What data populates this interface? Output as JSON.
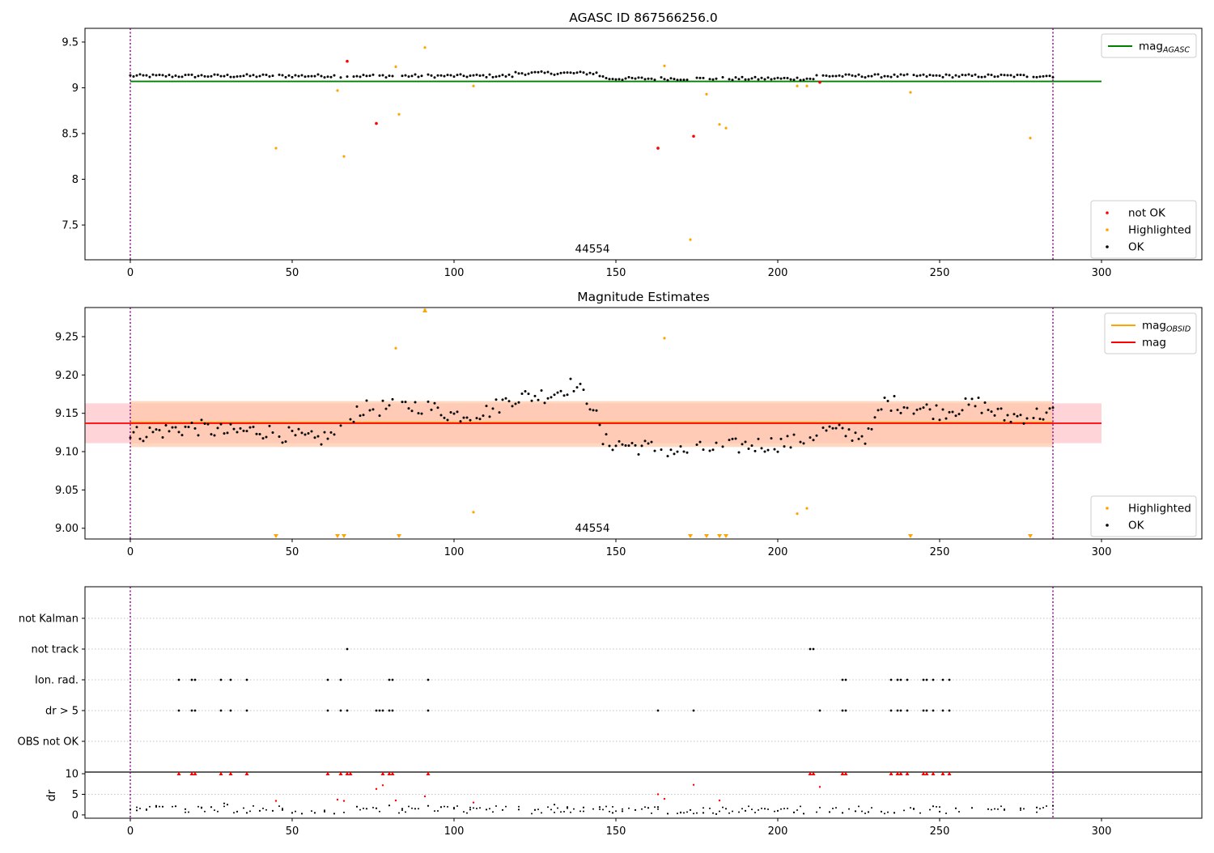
{
  "colors": {
    "ok": "#000000",
    "highlighted": "#ffa500",
    "not_ok": "#ff0000",
    "agasc_line": "#008000",
    "obsid_line": "#ffa500",
    "mag_line": "#ff0000",
    "band_pink": "#ffb0b8",
    "band_orange": "#ffc8a8",
    "vline": "#800080"
  },
  "chart_data": [
    {
      "type": "scatter",
      "title": "AGASC ID 867566256.0",
      "xlim": [
        -14,
        331
      ],
      "ylim": [
        7.12,
        9.65
      ],
      "xticks": [
        0,
        50,
        100,
        150,
        200,
        250,
        300
      ],
      "yticks": [
        7.5,
        8.0,
        8.5,
        9.0,
        9.5
      ],
      "annotation": "44554",
      "vlines": [
        0,
        285
      ],
      "hline": {
        "name": "mag",
        "subscript": "AGASC",
        "y": 9.07,
        "x": [
          0,
          300
        ]
      },
      "legend_top": [
        {
          "label": "mag",
          "sub": "AGASC",
          "kind": "line",
          "color": "#008000"
        }
      ],
      "legend_bottom": [
        {
          "label": "not OK",
          "color": "#ff0000"
        },
        {
          "label": "Highlighted",
          "color": "#ffa500"
        },
        {
          "label": "OK",
          "color": "#000000"
        }
      ],
      "series": [
        {
          "name": "not OK",
          "points": [
            [
              67,
              9.29
            ],
            [
              76,
              8.61
            ],
            [
              163,
              8.34
            ],
            [
              174,
              8.47
            ],
            [
              213,
              9.06
            ]
          ]
        },
        {
          "name": "Highlighted",
          "points": [
            [
              45,
              8.34
            ],
            [
              64,
              8.97
            ],
            [
              66,
              8.25
            ],
            [
              82,
              9.23
            ],
            [
              83,
              8.71
            ],
            [
              91,
              9.44
            ],
            [
              106,
              9.02
            ],
            [
              165,
              9.24
            ],
            [
              173,
              7.34
            ],
            [
              178,
              8.93
            ],
            [
              182,
              8.6
            ],
            [
              184,
              8.56
            ],
            [
              206,
              9.02
            ],
            [
              209,
              9.02
            ],
            [
              241,
              8.95
            ],
            [
              278,
              8.45
            ]
          ]
        },
        {
          "name": "OK",
          "base": 9.13,
          "x_range": [
            0,
            285
          ]
        }
      ]
    },
    {
      "type": "scatter",
      "title": "Magnitude Estimates",
      "xlim": [
        -14,
        331
      ],
      "ylim": [
        8.986,
        9.288
      ],
      "xticks": [
        0,
        50,
        100,
        150,
        200,
        250,
        300
      ],
      "yticks": [
        9.0,
        9.05,
        9.1,
        9.15,
        9.2,
        9.25
      ],
      "ytick_labels": [
        "9.00",
        "9.05",
        "9.10",
        "9.15",
        "9.20",
        "9.25"
      ],
      "annotation": "44554",
      "vlines": [
        0,
        285
      ],
      "lines": [
        {
          "name": "mag",
          "sub": "OBSID",
          "y": 9.138
        },
        {
          "name": "mag",
          "y": 9.137
        }
      ],
      "bands": [
        {
          "y": [
            9.111,
            9.163
          ],
          "x": [
            -14,
            300
          ]
        },
        {
          "y": [
            9.106,
            9.166
          ],
          "x": [
            0,
            285
          ]
        }
      ],
      "legend_top": [
        {
          "label": "mag",
          "sub": "OBSID",
          "kind": "line",
          "color": "#ffa500"
        },
        {
          "label": "mag",
          "kind": "line",
          "color": "#ff0000"
        }
      ],
      "legend_bottom": [
        {
          "label": "Highlighted",
          "color": "#ffa500"
        },
        {
          "label": "OK",
          "color": "#000000"
        }
      ],
      "highlighted_points": [
        [
          82,
          9.235
        ],
        [
          91,
          9.285
        ],
        [
          106,
          9.021
        ],
        [
          165,
          9.248
        ],
        [
          206,
          9.019
        ],
        [
          209,
          9.026
        ]
      ],
      "offscale_markers_x": [
        45,
        64,
        66,
        83,
        173,
        178,
        182,
        184,
        241,
        278
      ],
      "ok_trend": [
        [
          0,
          9.122
        ],
        [
          20,
          9.132
        ],
        [
          30,
          9.125
        ],
        [
          40,
          9.128
        ],
        [
          57,
          9.115
        ],
        [
          65,
          9.125
        ],
        [
          70,
          9.155
        ],
        [
          90,
          9.16
        ],
        [
          100,
          9.148
        ],
        [
          110,
          9.152
        ],
        [
          118,
          9.17
        ],
        [
          130,
          9.175
        ],
        [
          137,
          9.188
        ],
        [
          143,
          9.16
        ],
        [
          146,
          9.113
        ],
        [
          160,
          9.105
        ],
        [
          170,
          9.1
        ],
        [
          190,
          9.108
        ],
        [
          205,
          9.112
        ],
        [
          215,
          9.128
        ],
        [
          228,
          9.12
        ],
        [
          233,
          9.165
        ],
        [
          250,
          9.152
        ],
        [
          262,
          9.162
        ],
        [
          270,
          9.145
        ],
        [
          285,
          9.15
        ]
      ]
    },
    {
      "type": "scatter",
      "title": "",
      "xlim": [
        -14,
        331
      ],
      "categories": [
        "not Kalman",
        "not track",
        "Ion. rad.",
        "dr > 5",
        "OBS not OK"
      ],
      "vlines": [
        0,
        285
      ],
      "flags": {
        "not track": [
          67,
          210,
          211
        ],
        "Ion. rad.": [
          15,
          19,
          20,
          28,
          31,
          36,
          61,
          65,
          80,
          81,
          92,
          220,
          221,
          235,
          237,
          238,
          240,
          245,
          246,
          248,
          251,
          253
        ],
        "dr > 5": [
          15,
          19,
          20,
          28,
          31,
          36,
          61,
          65,
          67,
          76,
          77,
          78,
          80,
          81,
          92,
          163,
          174,
          213,
          220,
          221,
          235,
          237,
          238,
          240,
          245,
          246,
          248,
          251,
          253
        ]
      }
    },
    {
      "type": "scatter",
      "ylabel": "dr",
      "xlim": [
        -14,
        331
      ],
      "ylim": [
        -0.8,
        10.4
      ],
      "xticks": [
        0,
        50,
        100,
        150,
        200,
        250,
        300
      ],
      "yticks": [
        0,
        5,
        10
      ],
      "vlines": [
        0,
        285
      ],
      "clipped_x": [
        15,
        19,
        20,
        28,
        31,
        36,
        61,
        65,
        67,
        68,
        78,
        80,
        81,
        92,
        210,
        211,
        220,
        221,
        235,
        237,
        238,
        240,
        245,
        246,
        248,
        251,
        253
      ],
      "red_points": [
        [
          45,
          3.4
        ],
        [
          64,
          3.7
        ],
        [
          66,
          3.4
        ],
        [
          76,
          6.3
        ],
        [
          78,
          7.2
        ],
        [
          82,
          3.5
        ],
        [
          91,
          4.5
        ],
        [
          106,
          3.0
        ],
        [
          163,
          5.0
        ],
        [
          165,
          3.9
        ],
        [
          174,
          7.3
        ],
        [
          182,
          3.5
        ],
        [
          213,
          6.8
        ]
      ],
      "ok_points": [
        [
          0,
          1.3
        ],
        [
          2,
          1.1
        ],
        [
          5,
          1.2
        ],
        [
          8,
          2.2
        ],
        [
          10,
          2.0
        ],
        [
          14,
          2.1
        ],
        [
          17,
          1.4
        ],
        [
          22,
          1.8
        ],
        [
          25,
          1.9
        ],
        [
          29,
          2.8
        ],
        [
          30,
          2.5
        ],
        [
          33,
          0.8
        ],
        [
          36,
          0.5
        ],
        [
          40,
          1.0
        ],
        [
          44,
          1.0
        ],
        [
          47,
          1.2
        ],
        [
          50,
          0.5
        ],
        [
          53,
          0.3
        ],
        [
          57,
          0.5
        ],
        [
          60,
          0.8
        ],
        [
          63,
          0.3
        ],
        [
          70,
          2.0
        ],
        [
          73,
          1.5
        ],
        [
          76,
          1.6
        ],
        [
          80,
          2.3
        ],
        [
          84,
          1.5
        ],
        [
          88,
          1.5
        ],
        [
          92,
          2.2
        ],
        [
          96,
          1.9
        ],
        [
          100,
          1.5
        ],
        [
          105,
          1.3
        ],
        [
          110,
          1.3
        ],
        [
          115,
          1.2
        ],
        [
          120,
          1.3
        ],
        [
          125,
          1.2
        ],
        [
          131,
          2.5
        ],
        [
          135,
          1.9
        ],
        [
          140,
          1.8
        ],
        [
          145,
          1.9
        ],
        [
          149,
          0.5
        ],
        [
          152,
          0.9
        ],
        [
          156,
          1.2
        ],
        [
          160,
          1.7
        ],
        [
          163,
          1.9
        ],
        [
          166,
          0.3
        ],
        [
          170,
          0.6
        ],
        [
          173,
          1.2
        ],
        [
          177,
          0.5
        ],
        [
          181,
          0.2
        ],
        [
          184,
          1.5
        ],
        [
          190,
          1.0
        ],
        [
          196,
          1.5
        ],
        [
          200,
          1.0
        ],
        [
          205,
          0.6
        ],
        [
          208,
          0.3
        ],
        [
          216,
          0.7
        ],
        [
          220,
          0.5
        ],
        [
          224,
          0.9
        ],
        [
          228,
          0.7
        ],
        [
          232,
          0.8
        ],
        [
          236,
          0.5
        ],
        [
          242,
          1.4
        ],
        [
          248,
          2.1
        ],
        [
          250,
          0.8
        ],
        [
          255,
          1.6
        ],
        [
          260,
          1.7
        ],
        [
          265,
          1.4
        ],
        [
          270,
          1.2
        ],
        [
          275,
          1.6
        ],
        [
          280,
          1.8
        ],
        [
          285,
          2.2
        ]
      ]
    }
  ]
}
